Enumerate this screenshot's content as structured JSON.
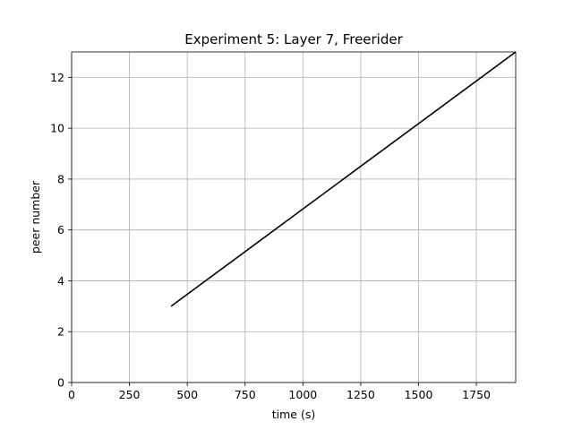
{
  "chart_data": {
    "type": "line",
    "title": "Experiment 5: Layer 7, Freerider",
    "xlabel": "time (s)",
    "ylabel": "peer number",
    "xlim": [
      0,
      1920
    ],
    "ylim": [
      0,
      13
    ],
    "xticks": [
      0,
      250,
      500,
      750,
      1000,
      1250,
      1500,
      1750
    ],
    "yticks": [
      0,
      2,
      4,
      6,
      8,
      10,
      12
    ],
    "grid": true,
    "series": [
      {
        "x": [
          430,
          1920
        ],
        "y": [
          3,
          13
        ],
        "color": "#000000"
      }
    ]
  }
}
